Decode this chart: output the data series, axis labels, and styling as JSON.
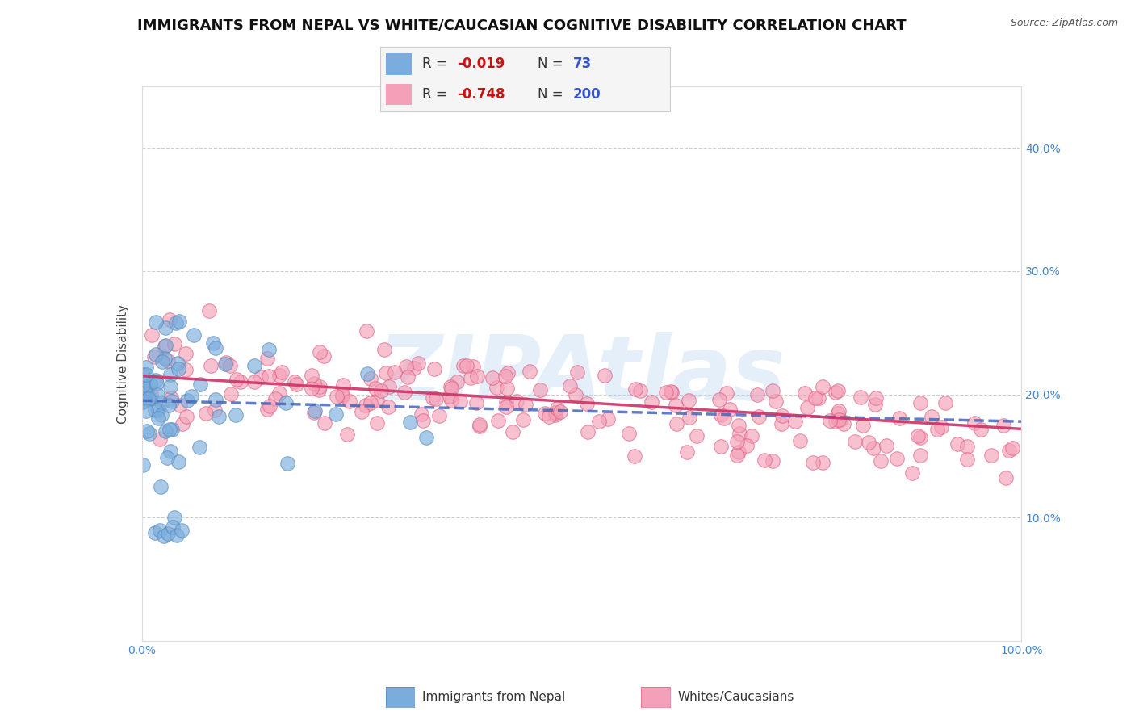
{
  "title": "IMMIGRANTS FROM NEPAL VS WHITE/CAUCASIAN COGNITIVE DISABILITY CORRELATION CHART",
  "source_text": "Source: ZipAtlas.com",
  "ylabel": "Cognitive Disability",
  "xlim": [
    0.0,
    1.0
  ],
  "ylim": [
    0.0,
    0.45
  ],
  "nepal_R": -0.019,
  "nepal_N": 73,
  "white_R": -0.748,
  "white_N": 200,
  "nepal_color": "#7aaddd",
  "nepal_edge_color": "#5588bb",
  "white_color": "#f4a0b8",
  "white_edge_color": "#e06080",
  "nepal_line_color": "#4466bb",
  "white_line_color": "#cc3366",
  "background_color": "#ffffff",
  "grid_color": "#bbbbbb",
  "legend_label_nepal": "Immigrants from Nepal",
  "legend_label_white": "Whites/Caucasians",
  "watermark_text": "ZIPAtlas",
  "watermark_color": "#aaccee",
  "title_fontsize": 13,
  "axis_label_fontsize": 11,
  "tick_fontsize": 10,
  "right_tick_color": "#4488cc"
}
